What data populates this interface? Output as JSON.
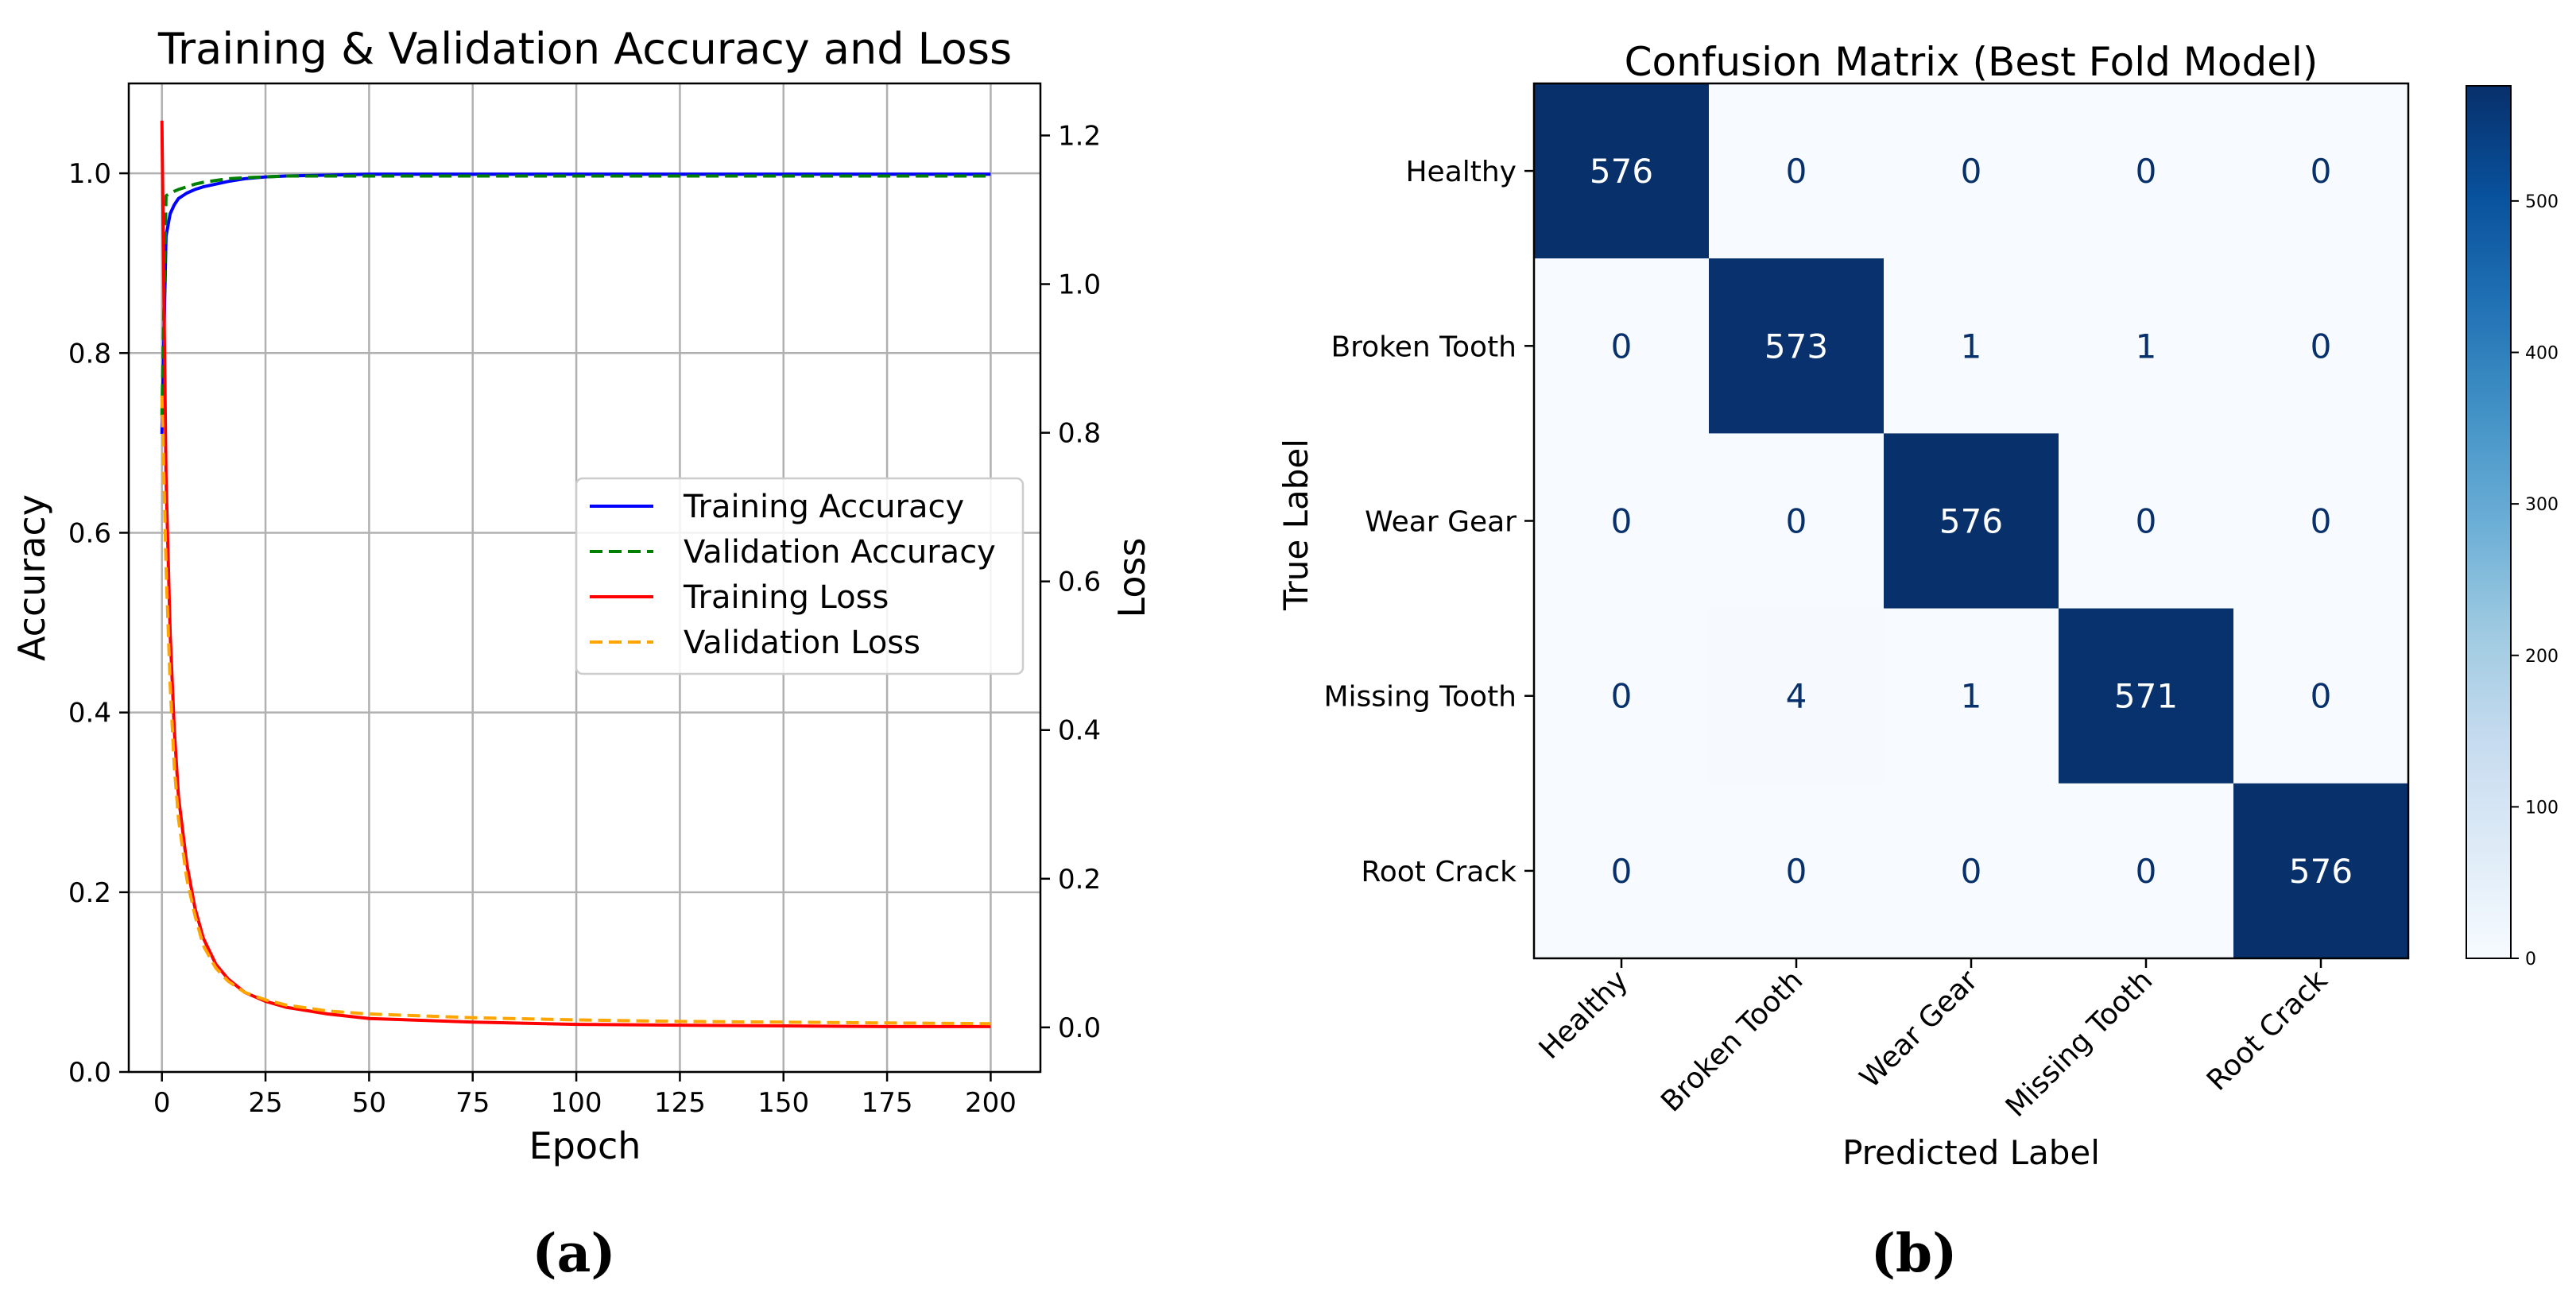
{
  "chart_data": [
    {
      "type": "line",
      "title": "Training & Validation Accuracy and Loss",
      "xlabel": "Epoch",
      "ylabel": "Accuracy",
      "y2label": "Loss",
      "panel_label": "(a)",
      "xlim": [
        -8,
        212
      ],
      "ylim": [
        0,
        1.1
      ],
      "y2lim": [
        -0.06,
        1.27
      ],
      "xticks": [
        0,
        25,
        50,
        75,
        100,
        125,
        150,
        175,
        200
      ],
      "yticks": [
        0.0,
        0.2,
        0.4,
        0.6,
        0.8,
        1.0
      ],
      "y2ticks": [
        0.0,
        0.2,
        0.4,
        0.6,
        0.8,
        1.0,
        1.2
      ],
      "grid": true,
      "legend_position": "center-right",
      "x": [
        0,
        1,
        2,
        3,
        4,
        6,
        8,
        10,
        13,
        16,
        20,
        25,
        30,
        40,
        50,
        75,
        100,
        125,
        150,
        175,
        200
      ],
      "series": [
        {
          "name": "Training Accuracy",
          "axis": "left",
          "color": "#0000ff",
          "dash": "solid",
          "width": 4,
          "values": [
            0.71,
            0.93,
            0.955,
            0.965,
            0.972,
            0.978,
            0.982,
            0.985,
            0.988,
            0.991,
            0.994,
            0.996,
            0.997,
            0.998,
            0.999,
            0.999,
            0.999,
            0.999,
            0.999,
            0.999,
            0.999
          ]
        },
        {
          "name": "Validation Accuracy",
          "axis": "left",
          "color": "#008000",
          "dash": "dashed",
          "width": 4,
          "values": [
            0.73,
            0.975,
            0.978,
            0.98,
            0.982,
            0.985,
            0.988,
            0.99,
            0.992,
            0.994,
            0.995,
            0.996,
            0.997,
            0.997,
            0.997,
            0.997,
            0.997,
            0.997,
            0.997,
            0.997,
            0.997
          ]
        },
        {
          "name": "Training Loss",
          "axis": "right",
          "color": "#ff0000",
          "dash": "solid",
          "width": 4,
          "values": [
            1.22,
            0.74,
            0.53,
            0.4,
            0.31,
            0.22,
            0.16,
            0.12,
            0.085,
            0.065,
            0.047,
            0.035,
            0.027,
            0.018,
            0.012,
            0.007,
            0.004,
            0.003,
            0.002,
            0.001,
            0.001
          ]
        },
        {
          "name": "Validation Loss",
          "axis": "right",
          "color": "#ffa500",
          "dash": "dashed",
          "width": 4,
          "values": [
            0.85,
            0.62,
            0.46,
            0.35,
            0.28,
            0.2,
            0.15,
            0.11,
            0.08,
            0.062,
            0.047,
            0.037,
            0.03,
            0.022,
            0.018,
            0.013,
            0.01,
            0.008,
            0.007,
            0.006,
            0.005
          ]
        }
      ]
    },
    {
      "type": "heatmap",
      "title": "Confusion Matrix (Best Fold Model)",
      "xlabel": "Predicted Label",
      "ylabel": "True Label",
      "panel_label": "(b)",
      "categories": [
        "Healthy",
        "Broken Tooth",
        "Wear Gear",
        "Missing Tooth",
        "Root Crack"
      ],
      "values": [
        [
          576,
          0,
          0,
          0,
          0
        ],
        [
          0,
          573,
          1,
          1,
          0
        ],
        [
          0,
          0,
          576,
          0,
          0
        ],
        [
          0,
          4,
          1,
          571,
          0
        ],
        [
          0,
          0,
          0,
          0,
          576
        ]
      ],
      "colorbar_range": [
        0,
        576
      ],
      "colorbar_ticks": [
        0,
        100,
        200,
        300,
        400,
        500
      ],
      "colormap_low": "#f7fbff",
      "colormap_high": "#08306b"
    }
  ]
}
